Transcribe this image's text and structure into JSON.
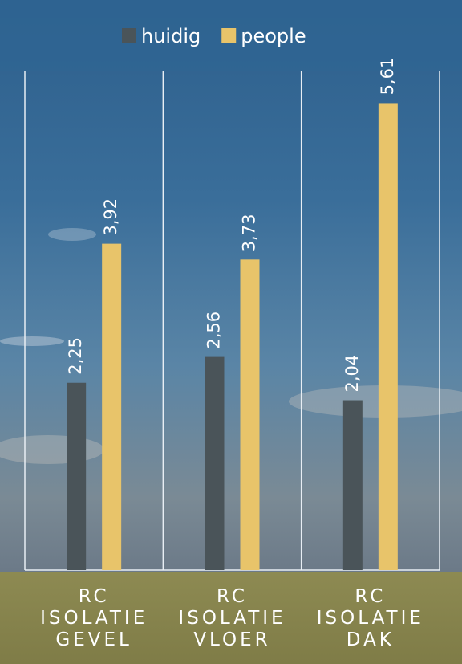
{
  "chart_data": {
    "type": "bar",
    "categories": [
      "RC ISOLATIE GEVEL",
      "RC ISOLATIE VLOER",
      "RC ISOLATIE DAK"
    ],
    "series": [
      {
        "name": "huidig",
        "color": "#4a5459",
        "values": [
          2.25,
          2.56,
          2.04
        ],
        "value_labels": [
          "2,25",
          "2,56",
          "2,04"
        ]
      },
      {
        "name": "people",
        "color": "#e8c46a",
        "values": [
          3.92,
          3.73,
          5.61
        ],
        "value_labels": [
          "3,92",
          "3,73",
          "5,61"
        ]
      }
    ],
    "ylim": [
      0,
      6
    ]
  }
}
